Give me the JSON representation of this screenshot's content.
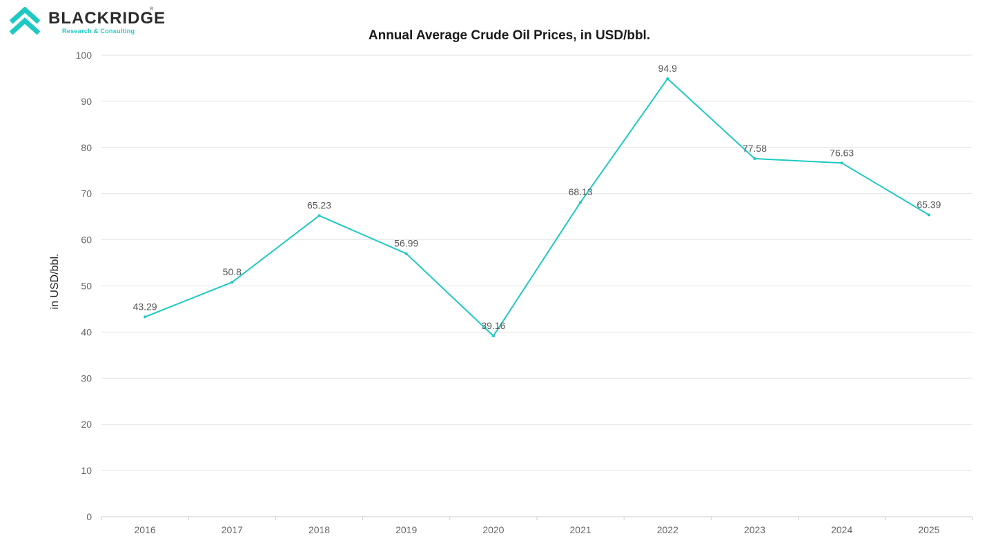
{
  "brand": {
    "name": "BLACKRIDGE",
    "registered": "®",
    "tagline": "Research & Consulting",
    "accent_color": "#1ec9c3"
  },
  "chart_data": {
    "type": "line",
    "title": "Annual Average Crude Oil Prices, in USD/bbl.",
    "xlabel": "",
    "ylabel": "in USD/bbl.",
    "categories": [
      "2016",
      "2017",
      "2018",
      "2019",
      "2020",
      "2021",
      "2022",
      "2023",
      "2024",
      "2025"
    ],
    "series": [
      {
        "values": [
          43.29,
          50.8,
          65.23,
          56.99,
          39.16,
          68.13,
          94.9,
          77.58,
          76.63,
          65.39
        ],
        "labels": [
          "43.29",
          "50.8",
          "65.23",
          "56.99",
          "39.16",
          "68.13",
          "94.9",
          "77.58",
          "76.63",
          "65.39"
        ],
        "color": "#1ec9c3"
      }
    ],
    "ylim": [
      0,
      100
    ],
    "yticks": [
      "0",
      "10",
      "20",
      "30",
      "40",
      "50",
      "60",
      "70",
      "80",
      "90",
      "100"
    ],
    "grid": true,
    "legend": "none"
  }
}
